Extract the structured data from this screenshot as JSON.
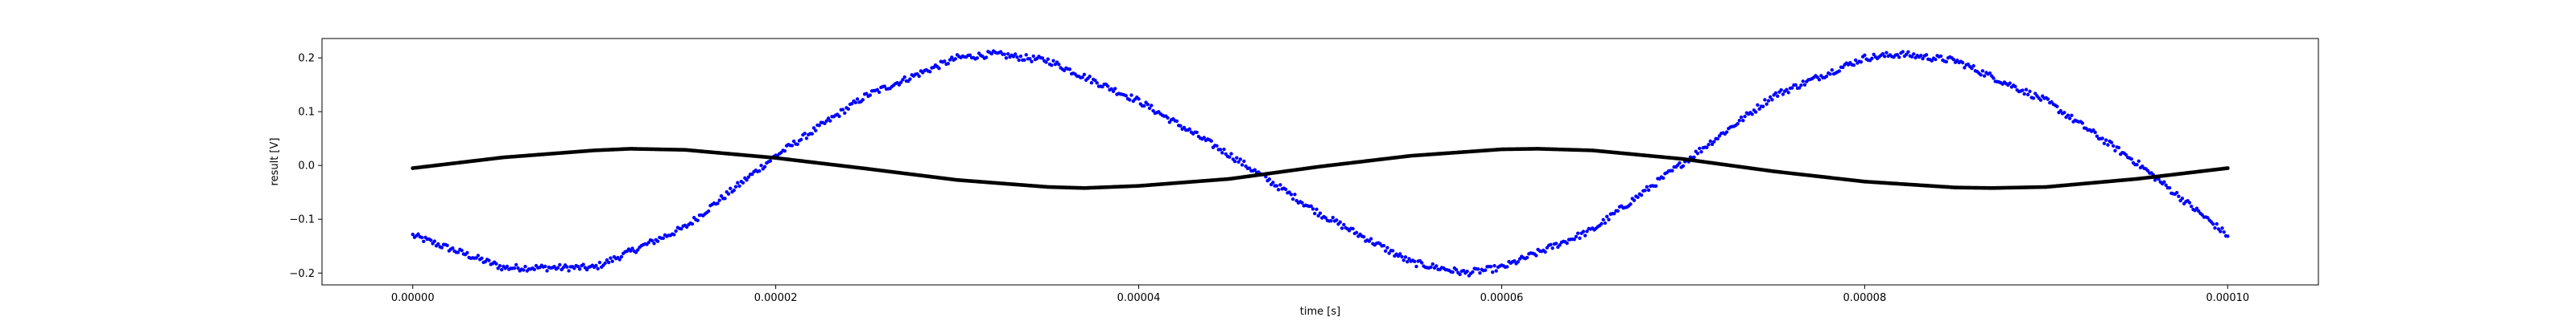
{
  "chart_data": {
    "type": "scatter",
    "title": "",
    "xlabel": "time [s]",
    "ylabel": "result [V]",
    "xlim": [
      -5e-06,
      0.000105
    ],
    "ylim": [
      -0.222,
      0.236
    ],
    "x_ticks": [
      0,
      2e-05,
      4e-05,
      6e-05,
      8e-05,
      0.0001
    ],
    "x_tick_labels": [
      "0.00000",
      "0.00002",
      "0.00004",
      "0.00006",
      "0.00008",
      "0.00010"
    ],
    "y_ticks": [
      -0.2,
      -0.1,
      0.0,
      0.1,
      0.2
    ],
    "y_tick_labels": [
      "−0.2",
      "−0.1",
      "0.0",
      "0.1",
      "0.2"
    ],
    "grid": false,
    "series": [
      {
        "color": "#0000ff",
        "marker": "small dots with noise",
        "x": [
          0,
          5e-06,
          1e-05,
          1.5e-05,
          2e-05,
          2.5e-05,
          3e-05,
          3.2e-05,
          3.5e-05,
          4e-05,
          4.5e-05,
          5e-05,
          5.5e-05,
          5.8e-05,
          6e-05,
          6.5e-05,
          7e-05,
          7.5e-05,
          8e-05,
          8.2e-05,
          8.5e-05,
          9e-05,
          9.5e-05,
          0.0001
        ],
        "y": [
          -0.13,
          -0.19,
          -0.19,
          -0.115,
          0.018,
          0.13,
          0.2,
          0.207,
          0.195,
          0.12,
          0.02,
          -0.09,
          -0.18,
          -0.2,
          -0.19,
          -0.12,
          0.005,
          0.13,
          0.2,
          0.207,
          0.195,
          0.12,
          0.005,
          -0.13
        ]
      },
      {
        "color": "#000000",
        "marker": "small dots",
        "x": [
          0,
          5e-06,
          1e-05,
          1.2e-05,
          1.5e-05,
          2e-05,
          2.5e-05,
          3e-05,
          3.5e-05,
          3.7e-05,
          4e-05,
          4.5e-05,
          5e-05,
          5.5e-05,
          6e-05,
          6.2e-05,
          6.5e-05,
          7e-05,
          7.5e-05,
          8e-05,
          8.5e-05,
          8.7e-05,
          9e-05,
          9.5e-05,
          0.0001
        ],
        "y": [
          -0.005,
          0.015,
          0.028,
          0.031,
          0.029,
          0.014,
          -0.006,
          -0.027,
          -0.04,
          -0.042,
          -0.038,
          -0.025,
          -0.002,
          0.018,
          0.03,
          0.031,
          0.028,
          0.012,
          -0.011,
          -0.03,
          -0.041,
          -0.042,
          -0.04,
          -0.025,
          -0.005
        ]
      }
    ]
  }
}
